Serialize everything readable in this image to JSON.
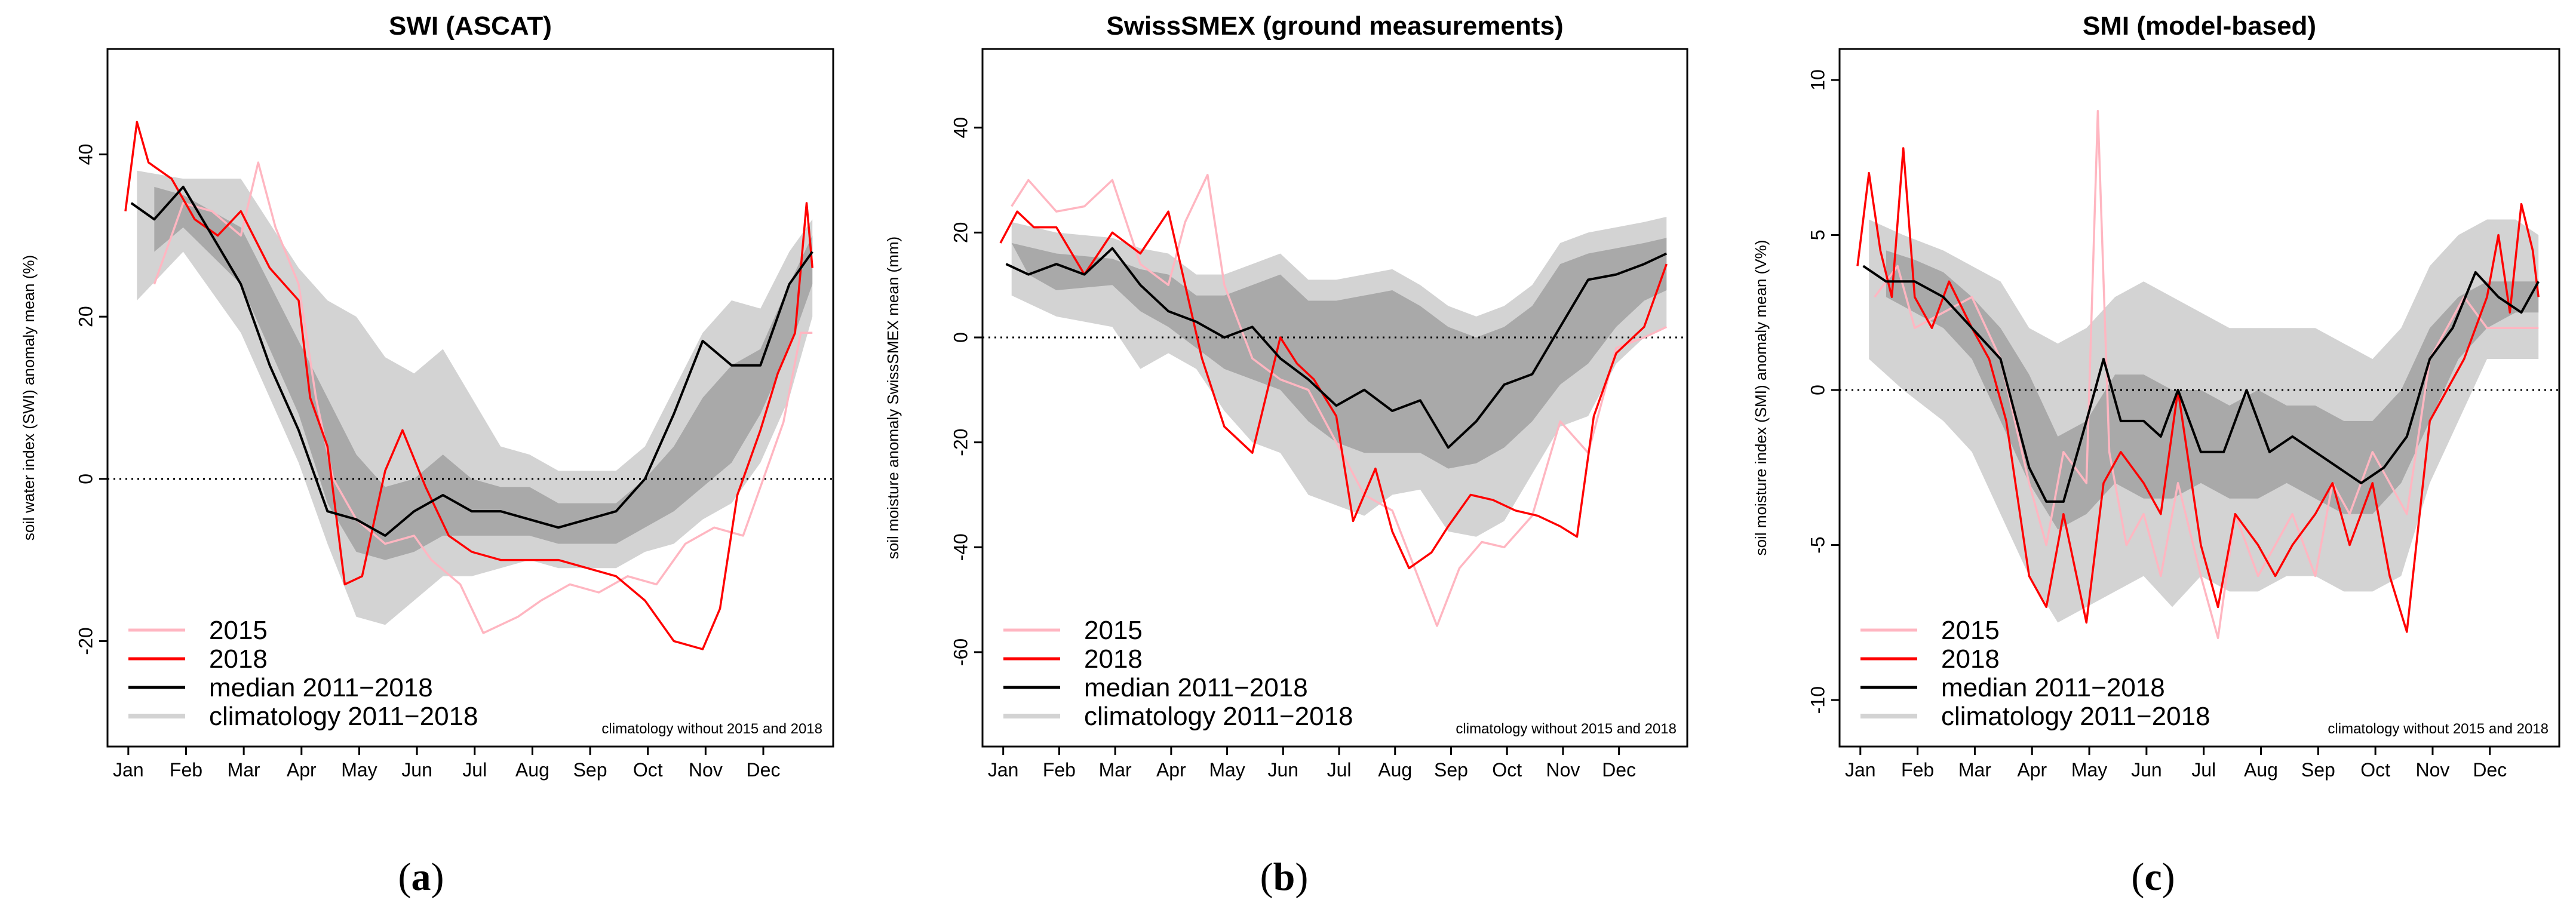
{
  "colors": {
    "y2015": "#ffb6c1",
    "y2018": "#ff0000",
    "median": "#000000",
    "clim_outer": "#d3d3d3",
    "clim_inner": "#a9a9a9"
  },
  "legend": {
    "items": [
      "2015",
      "2018",
      "median 2011−2018",
      "climatology 2011−2018"
    ],
    "note": "climatology without 2015 and 2018"
  },
  "chart_data": [
    {
      "id": "a",
      "caption_letter": "a",
      "caption": "(a)",
      "type": "line",
      "title": "SWI (ASCAT)",
      "ylabel": "soil water index (SWI) anomaly mean (%)",
      "xlabel": "",
      "x_tick_labels": [
        "Jan",
        "Feb",
        "Mar",
        "Apr",
        "May",
        "Jun",
        "Jul",
        "Aug",
        "Sep",
        "Oct",
        "Nov",
        "Dec"
      ],
      "ylim": [
        -33,
        53
      ],
      "yticks": [
        -20,
        0,
        20,
        40
      ],
      "reference_line": 0,
      "series": [
        {
          "name": "median 2011−2018",
          "x": [
            0.1,
            0.5,
            1.0,
            1.5,
            2.0,
            2.5,
            3.0,
            3.5,
            4.0,
            4.5,
            5.0,
            5.5,
            6.0,
            6.5,
            7.0,
            7.5,
            8.0,
            8.5,
            9.0,
            9.5,
            10.0,
            10.5,
            11.0,
            11.5,
            11.9
          ],
          "values": [
            34,
            32,
            36,
            30,
            24,
            14,
            6,
            -4,
            -5,
            -7,
            -4,
            -2,
            -4,
            -4,
            -5,
            -6,
            -5,
            -4,
            0,
            8,
            17,
            14,
            14,
            24,
            28
          ]
        },
        {
          "name": "2018",
          "x": [
            0.0,
            0.2,
            0.4,
            0.8,
            1.2,
            1.6,
            2.0,
            2.5,
            3.0,
            3.2,
            3.5,
            3.8,
            4.1,
            4.5,
            4.8,
            5.2,
            5.6,
            6.0,
            6.5,
            7.0,
            7.5,
            8.0,
            8.5,
            9.0,
            9.5,
            10.0,
            10.3,
            10.6,
            11.0,
            11.3,
            11.6,
            11.8,
            11.9
          ],
          "values": [
            33,
            44,
            39,
            37,
            32,
            30,
            33,
            26,
            22,
            10,
            4,
            -13,
            -12,
            1,
            6,
            -1,
            -7,
            -9,
            -10,
            -10,
            -10,
            -11,
            -12,
            -15,
            -20,
            -21,
            -16,
            -2,
            6,
            13,
            18,
            34,
            26
          ]
        },
        {
          "name": "2015",
          "x": [
            0.5,
            1.0,
            1.5,
            2.0,
            2.3,
            2.6,
            3.0,
            3.3,
            3.6,
            4.0,
            4.5,
            5.0,
            5.3,
            5.8,
            6.2,
            6.8,
            7.2,
            7.7,
            8.2,
            8.7,
            9.2,
            9.7,
            10.2,
            10.7,
            11.0,
            11.4,
            11.7,
            11.9
          ],
          "values": [
            24,
            34,
            33,
            30,
            39,
            31,
            24,
            10,
            0,
            -5,
            -8,
            -7,
            -10,
            -13,
            -19,
            -17,
            -15,
            -13,
            -14,
            -12,
            -13,
            -8,
            -6,
            -7,
            -1,
            7,
            18,
            18
          ]
        }
      ],
      "climatology_outer": {
        "x": [
          0.2,
          1.0,
          2.0,
          3.0,
          3.5,
          4.0,
          4.5,
          5.0,
          5.5,
          6.0,
          6.5,
          7.0,
          7.5,
          8.0,
          8.5,
          9.0,
          9.5,
          10.0,
          10.5,
          11.0,
          11.5,
          11.9
        ],
        "lower": [
          22,
          28,
          18,
          2,
          -8,
          -17,
          -18,
          -15,
          -12,
          -12,
          -11,
          -10,
          -11,
          -11,
          -11,
          -9,
          -8,
          -5,
          -3,
          2,
          10,
          20
        ],
        "upper": [
          38,
          37,
          37,
          26,
          22,
          20,
          15,
          13,
          16,
          10,
          4,
          3,
          1,
          1,
          1,
          4,
          11,
          18,
          22,
          21,
          28,
          32
        ]
      },
      "climatology_inner": {
        "x": [
          0.5,
          1.0,
          2.0,
          3.0,
          3.5,
          4.0,
          4.5,
          5.0,
          5.5,
          6.0,
          6.5,
          7.0,
          7.5,
          8.0,
          8.5,
          9.0,
          9.5,
          10.0,
          10.5,
          11.0,
          11.5,
          11.9
        ],
        "lower": [
          28,
          31,
          24,
          8,
          -3,
          -9,
          -10,
          -9,
          -7,
          -7,
          -7,
          -7,
          -8,
          -8,
          -8,
          -6,
          -4,
          -1,
          2,
          8,
          16,
          24
        ],
        "upper": [
          36,
          35,
          31,
          17,
          10,
          3,
          -1,
          0,
          3,
          0,
          -1,
          -1,
          -3,
          -3,
          -3,
          0,
          4,
          10,
          14,
          16,
          24,
          30
        ]
      }
    },
    {
      "id": "b",
      "caption_letter": "b",
      "caption": "(b)",
      "type": "line",
      "title": "SwissSMEX (ground measurements)",
      "ylabel": "soil moisture anomaly SwissSMEX mean (mm)",
      "xlabel": "",
      "x_tick_labels": [
        "Jan",
        "Feb",
        "Mar",
        "Apr",
        "May",
        "Jun",
        "Jul",
        "Aug",
        "Sep",
        "Oct",
        "Nov",
        "Dec"
      ],
      "ylim": [
        -78,
        55
      ],
      "yticks": [
        -60,
        -40,
        -20,
        0,
        20,
        40
      ],
      "reference_line": 0,
      "series": [
        {
          "name": "median 2011−2018",
          "x": [
            0.1,
            0.5,
            1.0,
            1.5,
            2.0,
            2.5,
            3.0,
            3.5,
            4.0,
            4.5,
            5.0,
            5.5,
            6.0,
            6.5,
            7.0,
            7.5,
            8.0,
            8.5,
            9.0,
            9.5,
            10.0,
            10.5,
            11.0,
            11.5,
            11.9
          ],
          "values": [
            14,
            12,
            14,
            12,
            17,
            10,
            5,
            3,
            0,
            2,
            -4,
            -8,
            -13,
            -10,
            -14,
            -12,
            -21,
            -16,
            -9,
            -7,
            2,
            11,
            12,
            14,
            16
          ]
        },
        {
          "name": "2018",
          "x": [
            0.0,
            0.3,
            0.6,
            1.0,
            1.5,
            2.0,
            2.5,
            3.0,
            3.3,
            3.6,
            4.0,
            4.5,
            5.0,
            5.3,
            5.6,
            6.0,
            6.3,
            6.7,
            7.0,
            7.3,
            7.7,
            8.0,
            8.4,
            8.8,
            9.2,
            9.6,
            10.0,
            10.3,
            10.6,
            11.0,
            11.5,
            11.9
          ],
          "values": [
            18,
            24,
            21,
            21,
            12,
            20,
            16,
            24,
            10,
            -4,
            -17,
            -22,
            0,
            -5,
            -8,
            -15,
            -35,
            -25,
            -37,
            -44,
            -41,
            -36,
            -30,
            -31,
            -33,
            -34,
            -36,
            -38,
            -15,
            -3,
            2,
            14
          ]
        },
        {
          "name": "2015",
          "x": [
            0.2,
            0.5,
            1.0,
            1.5,
            2.0,
            2.5,
            3.0,
            3.3,
            3.7,
            4.0,
            4.5,
            5.0,
            5.5,
            6.0,
            6.5,
            7.0,
            7.4,
            7.8,
            8.2,
            8.6,
            9.0,
            9.5,
            10.0,
            10.5,
            11.0,
            11.5,
            11.9
          ],
          "values": [
            25,
            30,
            24,
            25,
            30,
            14,
            10,
            22,
            31,
            10,
            -4,
            -8,
            -10,
            -20,
            -30,
            -33,
            -44,
            -55,
            -44,
            -39,
            -40,
            -34,
            -16,
            -22,
            -2,
            0,
            2
          ]
        }
      ],
      "climatology_outer": {
        "x": [
          0.2,
          1.0,
          2.0,
          2.5,
          3.0,
          3.5,
          4.0,
          4.5,
          5.0,
          5.5,
          6.0,
          6.5,
          7.0,
          7.5,
          8.0,
          8.5,
          9.0,
          9.5,
          10.0,
          10.5,
          11.0,
          11.5,
          11.9
        ],
        "lower": [
          8,
          4,
          2,
          -6,
          -3,
          -6,
          -14,
          -20,
          -22,
          -30,
          -32,
          -34,
          -30,
          -29,
          -37,
          -38,
          -35,
          -26,
          -17,
          -15,
          -5,
          0,
          2
        ],
        "upper": [
          22,
          20,
          19,
          17,
          16,
          12,
          12,
          14,
          16,
          11,
          11,
          12,
          13,
          10,
          6,
          4,
          6,
          10,
          18,
          20,
          21,
          22,
          23
        ]
      },
      "climatology_inner": {
        "x": [
          0.5,
          1.0,
          2.0,
          2.5,
          3.0,
          3.5,
          4.0,
          4.5,
          5.0,
          5.5,
          6.0,
          6.5,
          7.0,
          7.5,
          8.0,
          8.5,
          9.0,
          9.5,
          10.0,
          10.5,
          11.0,
          11.5,
          11.9
        ],
        "lower": [
          12,
          9,
          10,
          5,
          2,
          -2,
          -6,
          -8,
          -10,
          -16,
          -20,
          -22,
          -22,
          -22,
          -25,
          -24,
          -21,
          -16,
          -9,
          -5,
          2,
          7,
          9
        ]
      }
    },
    {
      "id": "c",
      "caption_letter": "c",
      "caption": "(c)",
      "type": "line",
      "title": "SMI (model-based)",
      "ylabel": "soil moisture index (SMI) anomaly mean (V%)",
      "xlabel": "",
      "x_tick_labels": [
        "Jan",
        "Feb",
        "Mar",
        "Apr",
        "May",
        "Jun",
        "Jul",
        "Aug",
        "Sep",
        "Oct",
        "Nov",
        "Dec"
      ],
      "ylim": [
        -11.5,
        11
      ],
      "yticks": [
        -10,
        -5,
        0,
        5,
        10
      ],
      "reference_line": 0,
      "series": [
        {
          "name": "median 2011−2018",
          "x": [
            0.1,
            0.5,
            1.0,
            1.5,
            2.0,
            2.5,
            3.0,
            3.3,
            3.6,
            4.0,
            4.3,
            4.6,
            5.0,
            5.3,
            5.6,
            6.0,
            6.4,
            6.8,
            7.2,
            7.6,
            8.0,
            8.4,
            8.8,
            9.2,
            9.6,
            10.0,
            10.4,
            10.8,
            11.2,
            11.6,
            11.9
          ],
          "values": [
            4.0,
            3.5,
            3.5,
            3.0,
            2.0,
            1.0,
            -2.5,
            -3.6,
            -3.6,
            -1.0,
            1.0,
            -1.0,
            -1.0,
            -1.5,
            0,
            -2,
            -2,
            0,
            -2,
            -1.5,
            -2,
            -2.5,
            -3,
            -2.5,
            -1.5,
            1,
            2,
            3.8,
            3,
            2.5,
            3.5
          ]
        },
        {
          "name": "2018",
          "x": [
            0.0,
            0.2,
            0.4,
            0.6,
            0.8,
            1.0,
            1.3,
            1.6,
            2.0,
            2.3,
            2.6,
            3.0,
            3.3,
            3.6,
            4.0,
            4.3,
            4.6,
            5.0,
            5.3,
            5.6,
            6.0,
            6.3,
            6.6,
            7.0,
            7.3,
            7.6,
            8.0,
            8.3,
            8.6,
            9.0,
            9.3,
            9.6,
            10.0,
            10.3,
            10.6,
            10.8,
            11.0,
            11.2,
            11.4,
            11.6,
            11.8,
            11.9
          ],
          "values": [
            4.0,
            7.0,
            4.5,
            3.0,
            7.8,
            3.0,
            2.0,
            3.5,
            2.0,
            1.0,
            -1.0,
            -6.0,
            -7.0,
            -4.0,
            -7.5,
            -3.0,
            -2.0,
            -3.0,
            -4.0,
            0.0,
            -5.0,
            -7.0,
            -4.0,
            -5.0,
            -6.0,
            -5.0,
            -4.0,
            -3.0,
            -5.0,
            -3.0,
            -6.0,
            -7.8,
            -1.0,
            0.0,
            1.0,
            2.0,
            3.0,
            5.0,
            2.5,
            6.0,
            4.5,
            3.0
          ]
        },
        {
          "name": "2015",
          "x": [
            0.3,
            0.7,
            1.0,
            1.5,
            2.0,
            2.5,
            3.0,
            3.3,
            3.6,
            4.0,
            4.2,
            4.4,
            4.7,
            5.0,
            5.3,
            5.6,
            6.0,
            6.3,
            6.6,
            7.0,
            7.3,
            7.6,
            8.0,
            8.3,
            8.6,
            9.0,
            9.3,
            9.6,
            10.0,
            10.3,
            10.6,
            11.0,
            11.3,
            11.6,
            11.9
          ],
          "values": [
            3.0,
            4.0,
            2.0,
            2.5,
            3.0,
            1.0,
            -3.0,
            -5.0,
            -2.0,
            -3.0,
            9.0,
            -2.0,
            -5.0,
            -4.0,
            -6.0,
            -3.0,
            -6.0,
            -8.0,
            -4.0,
            -6.0,
            -5.0,
            -4.0,
            -6.0,
            -3.0,
            -4.0,
            -2.0,
            -3.0,
            -4.0,
            1.0,
            2.0,
            3.0,
            2.0,
            2.0,
            2.0,
            2.0
          ]
        }
      ],
      "climatology_outer": {
        "x": [
          0.2,
          0.8,
          1.5,
          2.0,
          2.5,
          3.0,
          3.5,
          4.0,
          4.5,
          5.0,
          5.5,
          6.0,
          6.5,
          7.0,
          7.5,
          8.0,
          8.5,
          9.0,
          9.5,
          10.0,
          10.5,
          11.0,
          11.5,
          11.9
        ],
        "lower": [
          1.0,
          0.0,
          -1.0,
          -2.0,
          -4.0,
          -6.0,
          -7.5,
          -7.0,
          -6.5,
          -6.0,
          -7.0,
          -6.0,
          -6.5,
          -6.5,
          -6.0,
          -6.0,
          -6.5,
          -6.5,
          -6.0,
          -3.0,
          -1.0,
          1.0,
          1.0,
          1.0
        ],
        "upper": [
          5.5,
          5.0,
          4.5,
          4.0,
          3.5,
          2.0,
          1.5,
          2.0,
          3.0,
          3.5,
          3.0,
          2.5,
          2.0,
          2.0,
          2.0,
          2.0,
          1.5,
          1.0,
          2.0,
          4.0,
          5.0,
          5.5,
          5.5,
          5.0
        ]
      },
      "climatology_inner": {
        "x": [
          0.5,
          1.0,
          1.5,
          2.0,
          2.5,
          3.0,
          3.5,
          4.0,
          4.5,
          5.0,
          5.5,
          6.0,
          6.5,
          7.0,
          7.5,
          8.0,
          8.5,
          9.0,
          9.5,
          10.0,
          10.5,
          11.0,
          11.5,
          11.9
        ],
        "lower": [
          3.0,
          2.5,
          2.0,
          1.0,
          -1.0,
          -3.0,
          -4.5,
          -4.0,
          -3.0,
          -3.5,
          -3.5,
          -3.0,
          -3.5,
          -3.5,
          -3.0,
          -3.5,
          -4.0,
          -4.0,
          -3.0,
          -1.0,
          1.0,
          2.0,
          2.5,
          2.5
        ],
        "upper": [
          4.5,
          4.2,
          3.8,
          3.0,
          2.0,
          0.5,
          -1.5,
          -1.0,
          0.5,
          0.5,
          0.0,
          0.0,
          -0.5,
          0.0,
          -0.5,
          -0.5,
          -1.0,
          -1.0,
          0.0,
          2.0,
          3.0,
          3.5,
          3.5,
          3.5
        ]
      }
    }
  ]
}
